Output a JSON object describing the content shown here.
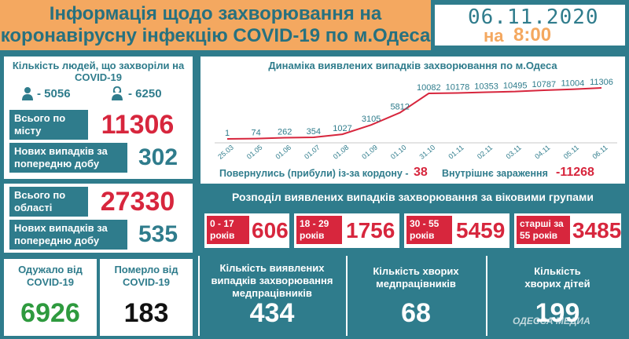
{
  "header": {
    "title_line1": "Інформація щодо захворювання на",
    "title_line2": "коронавірусну інфекцію COVID-19 по м.Одеса",
    "date": "06.11.2020",
    "time_prefix": "на",
    "time": "8:00"
  },
  "city": {
    "heading": "Кількість людей, що захворіли на COVID-19",
    "men": "- 5056",
    "women": "- 6250",
    "total_label": "Всього по місту",
    "total": "11306",
    "new_label": "Нових випадків за попередню добу",
    "new": "302"
  },
  "region": {
    "total_label": "Всього по області",
    "total": "27330",
    "new_label": "Нових випадків за попередню добу",
    "new": "535"
  },
  "recovered": {
    "label": "Одужало від COVID-19",
    "value": "6926"
  },
  "deaths": {
    "label": "Померло від COVID-19",
    "value": "183"
  },
  "chart": {
    "title": "Динаміка виявлених випадків захворювання по м.Одеса",
    "returned_label": "Повернулись (прибули) із-за кордону -",
    "returned": "38",
    "internal_label": "Внутрішнє зараження",
    "internal": "-11268"
  },
  "chart_data": {
    "type": "line",
    "title": "Динаміка виявлених випадків захворювання по м.Одеса",
    "categories": [
      "25.03",
      "01.05",
      "01.06",
      "01.07",
      "01.08",
      "01.09",
      "01.10",
      "31.10",
      "01.11",
      "02.11",
      "03.11",
      "04.11",
      "05.11",
      "06.11"
    ],
    "values": [
      1,
      74,
      262,
      354,
      1027,
      3105,
      5812,
      10082,
      10178,
      10353,
      10495,
      10787,
      11004,
      11306
    ],
    "color": "#d7263d",
    "xlabel": "",
    "ylabel": ""
  },
  "ages": {
    "title": "Розподіл виявлених випадків захворювання за віковими групами",
    "groups": [
      {
        "label": "0 - 17 років",
        "value": "606"
      },
      {
        "label": "18 - 29 років",
        "value": "1756"
      },
      {
        "label": "30 - 55 років",
        "value": "5459"
      },
      {
        "label": "старші за 55 років",
        "value": "3485"
      }
    ]
  },
  "medics": {
    "cases_label": "Кількість виявлених випадків захворювання медпрацівників",
    "cases": "434",
    "sick_label": "Кількість хворих медпрацівників",
    "sick": "68"
  },
  "children": {
    "label": "Кількість хворих дітей",
    "value": "199"
  },
  "watermark": "ОДЕССА МЕДИА",
  "colors": {
    "teal": "#2f7c8c",
    "orange": "#f4a860",
    "red": "#d7263d",
    "green": "#2e9a3e",
    "white": "#ffffff"
  }
}
